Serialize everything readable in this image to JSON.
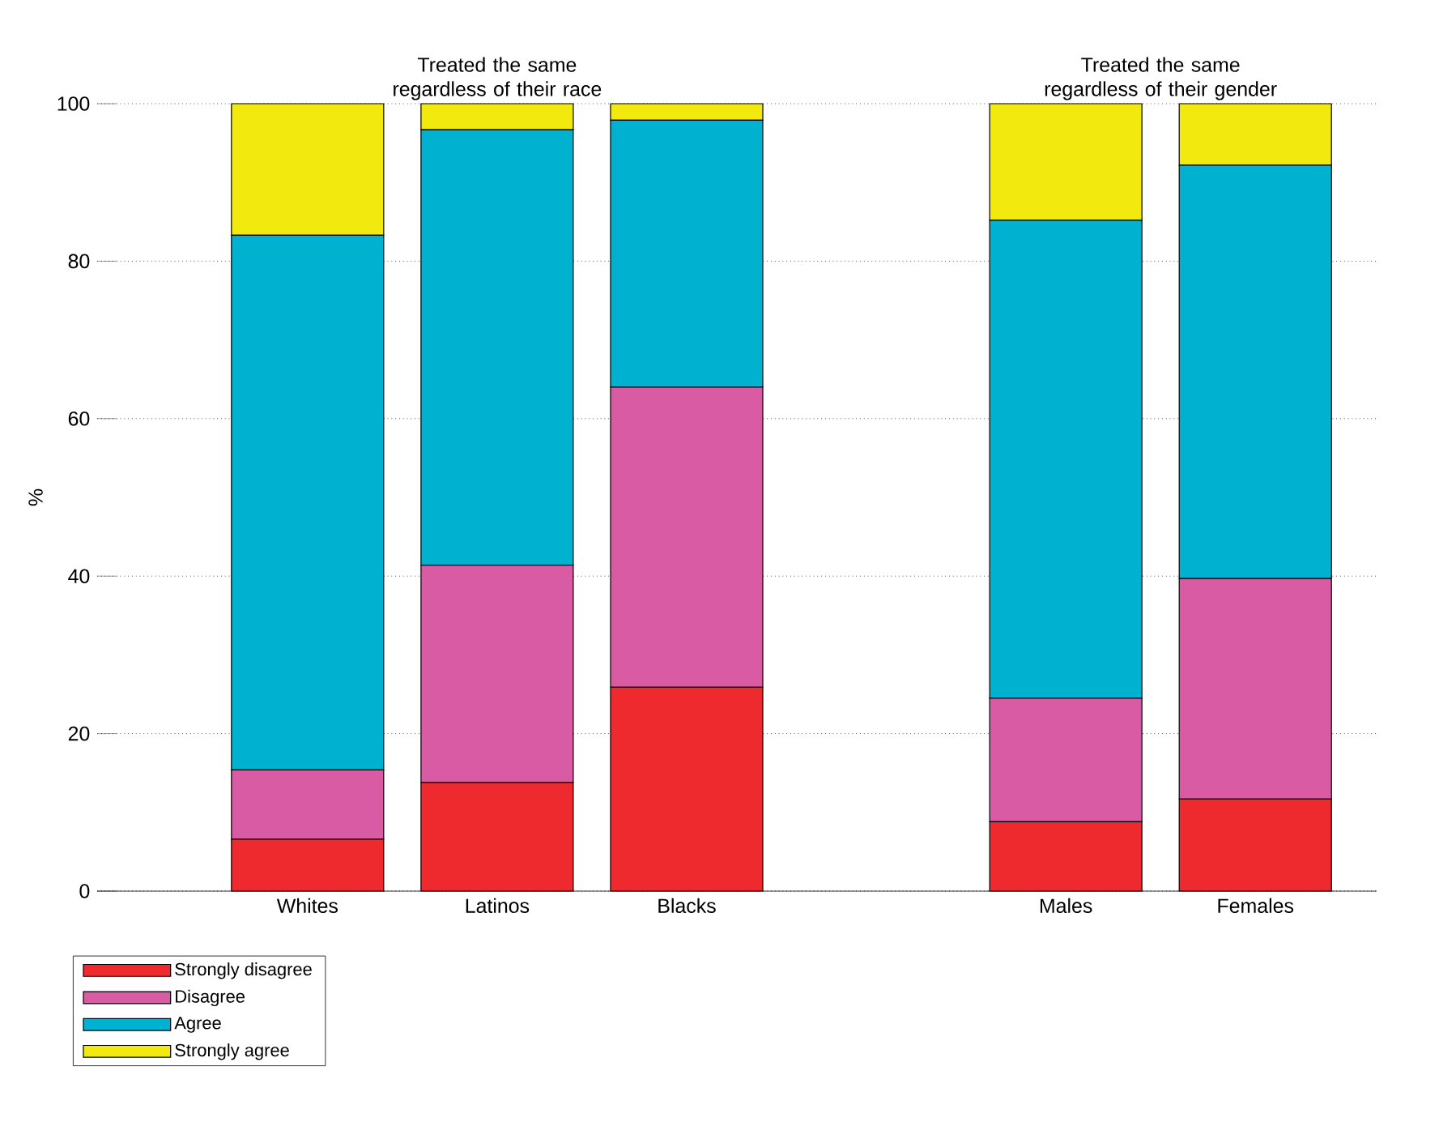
{
  "chart_data": {
    "type": "bar",
    "stacked": true,
    "ylabel": "%",
    "categories": [
      "Whites",
      "Latinos",
      "Blacks",
      null,
      "Males",
      "Females"
    ],
    "series": [
      {
        "name": "Strongly disagree",
        "color": "#ee2a2e",
        "values": [
          6.6,
          13.8,
          25.9,
          null,
          8.8,
          11.7
        ]
      },
      {
        "name": "Disagree",
        "color": "#d95ba4",
        "values": [
          8.8,
          27.6,
          38.1,
          null,
          15.7,
          28.0
        ]
      },
      {
        "name": "Agree",
        "color": "#00b2d0",
        "values": [
          67.9,
          55.3,
          33.9,
          null,
          60.7,
          52.5
        ]
      },
      {
        "name": "Strongly agree",
        "color": "#f2ea0e",
        "values": [
          16.7,
          3.3,
          2.1,
          null,
          14.8,
          7.8
        ]
      }
    ],
    "annotations": [
      "Treated the same regardless of their race",
      "Treated the same regardless of their gender"
    ],
    "ylim": [
      0,
      100
    ],
    "yticks": [
      0,
      20,
      40,
      60,
      80,
      100
    ],
    "grid": "y",
    "legend": "bottom"
  }
}
